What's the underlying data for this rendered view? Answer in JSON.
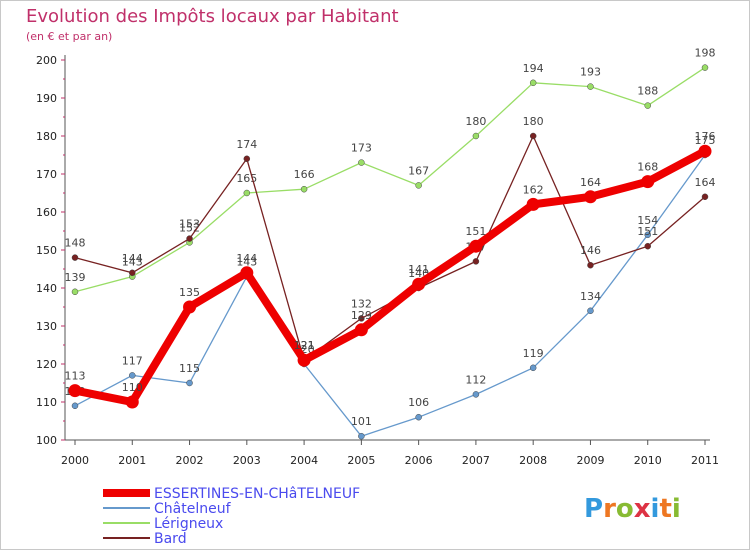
{
  "chart_data": {
    "type": "line",
    "title": "Evolution des Impôts locaux par Habitant",
    "subtitle": "(en € et par an)",
    "xlabel": "",
    "ylabel": "",
    "x": [
      "2000",
      "2001",
      "2002",
      "2003",
      "2004",
      "2005",
      "2006",
      "2007",
      "2008",
      "2009",
      "2010",
      "2011"
    ],
    "ylim": [
      100,
      200
    ],
    "yticks": [
      100,
      110,
      120,
      130,
      140,
      150,
      160,
      170,
      180,
      190,
      200
    ],
    "grid": false,
    "series": [
      {
        "name": "ESSERTINES-EN-CHâTELNEUF",
        "color": "#ee0000",
        "emphasis": true,
        "values": [
          113,
          110,
          135,
          144,
          121,
          129,
          141,
          151,
          162,
          164,
          168,
          176
        ],
        "labels": [
          "113",
          "110",
          "135",
          "144",
          "121",
          "129",
          "141",
          "151",
          "162",
          "164",
          "168",
          "176"
        ]
      },
      {
        "name": "Châtelneuf",
        "color": "#6699cc",
        "emphasis": false,
        "values": [
          109,
          117,
          115,
          143,
          120,
          101,
          106,
          112,
          119,
          134,
          154,
          175
        ],
        "labels": [
          "109",
          "117",
          "115",
          "143",
          "120",
          "101",
          "106",
          "112",
          "119",
          "134",
          "154",
          "175"
        ]
      },
      {
        "name": "Lérigneux",
        "color": "#99dd66",
        "emphasis": false,
        "values": [
          139,
          143,
          152,
          165,
          166,
          173,
          167,
          180,
          194,
          193,
          188,
          198
        ],
        "labels": [
          "139",
          "143",
          "152",
          "165",
          "166",
          "173",
          "167",
          "180",
          "194",
          "193",
          "188",
          "198"
        ]
      },
      {
        "name": "Bard",
        "color": "#772222",
        "emphasis": false,
        "values": [
          148,
          144,
          153,
          174,
          121,
          132,
          140,
          147,
          180,
          146,
          151,
          164
        ],
        "labels": [
          "148",
          "144",
          "153",
          "174",
          "121",
          "132",
          "140",
          "147",
          "180",
          "146",
          "151",
          "164"
        ]
      }
    ],
    "legend_position": "bottom-left"
  },
  "logo": {
    "text": "Proxiti",
    "letters": [
      "P",
      "r",
      "o",
      "x",
      "i",
      "t",
      "i"
    ],
    "colors": [
      "#3399dd",
      "#ee7722",
      "#88bb33",
      "#dd3344",
      "#3399dd",
      "#ee7722",
      "#88bb33"
    ]
  }
}
